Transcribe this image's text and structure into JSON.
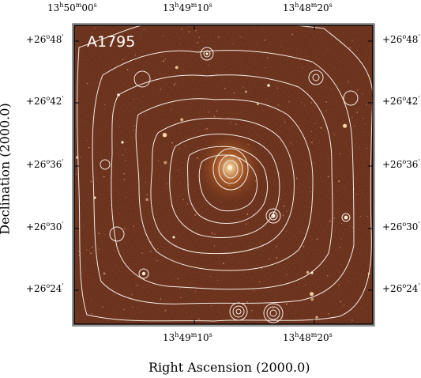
{
  "figure": {
    "label": "A1795",
    "xlabel": "Right Ascension (2000.0)",
    "ylabel": "Declination (2000.0)",
    "background_color": "#5a2210",
    "contour_color": "#f4ece6"
  },
  "ra_ticks": {
    "top": [
      {
        "h": "13",
        "m": "50",
        "s": "00"
      },
      {
        "h": "13",
        "m": "49",
        "s": "10"
      },
      {
        "h": "13",
        "m": "48",
        "s": "20"
      }
    ],
    "bottom": [
      {
        "h": "13",
        "m": "49",
        "s": "10"
      },
      {
        "h": "13",
        "m": "48",
        "s": "20"
      }
    ]
  },
  "dec_ticks": [
    {
      "deg": "+26",
      "min": "48"
    },
    {
      "deg": "+26",
      "min": "42"
    },
    {
      "deg": "+26",
      "min": "36"
    },
    {
      "deg": "+26",
      "min": "30"
    },
    {
      "deg": "+26",
      "min": "24"
    }
  ]
}
